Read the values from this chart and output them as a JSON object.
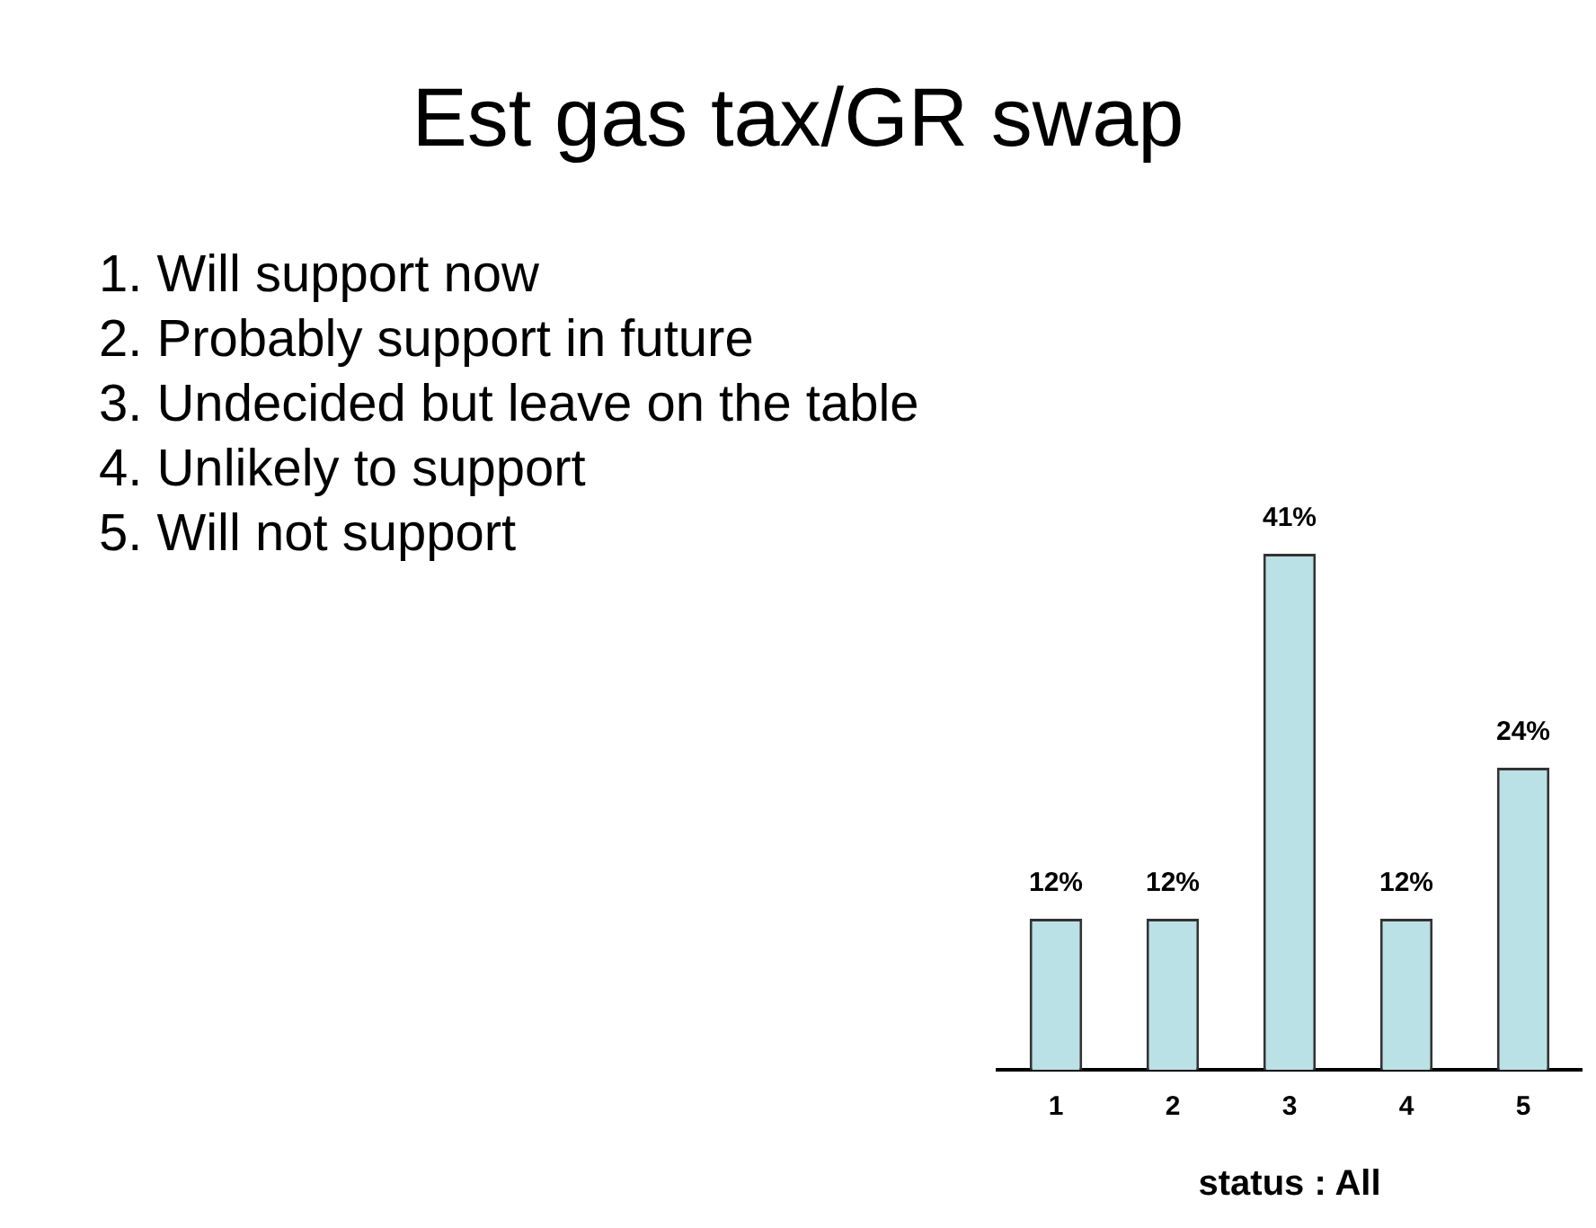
{
  "chart_data": {
    "type": "bar",
    "title": "Est gas tax/GR swap",
    "xlabel": "status : All",
    "categories": [
      "1",
      "2",
      "3",
      "4",
      "5"
    ],
    "values": [
      12,
      12,
      41,
      12,
      24
    ],
    "value_labels": [
      "12%",
      "12%",
      "41%",
      "12%",
      "24%"
    ],
    "color": "#b9e1e6",
    "annotations": [
      "1. Will support now",
      "2. Probably support in future",
      "3. Undecided but leave on the table",
      "4. Unlikely to support",
      "5. Will not support"
    ],
    "grid": false
  }
}
